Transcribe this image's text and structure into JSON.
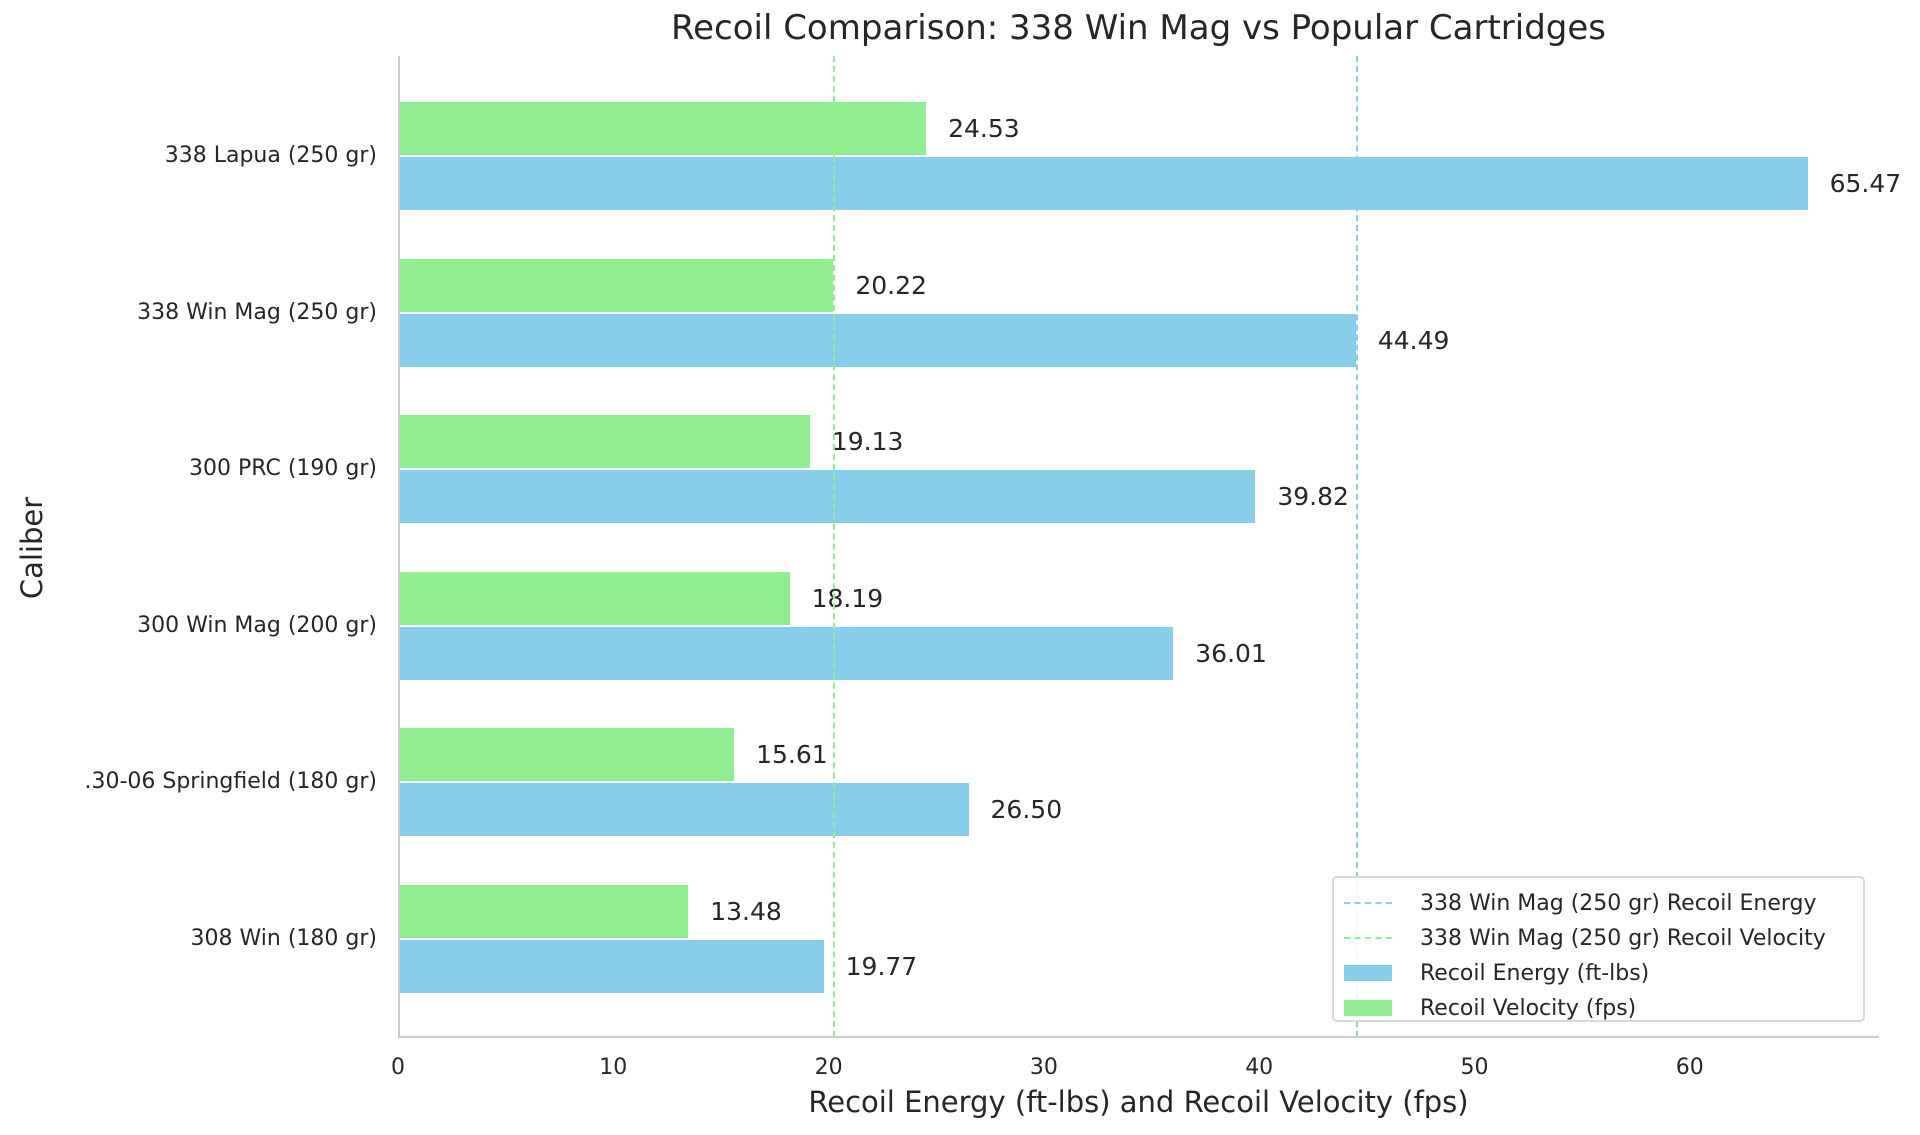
{
  "chart_data": {
    "type": "bar",
    "orientation": "horizontal",
    "title": "Recoil Comparison: 338 Win Mag vs Popular Cartridges",
    "xlabel": "Recoil Energy (ft-lbs) and Recoil Velocity (fps)",
    "ylabel": "Caliber",
    "categories": [
      "338 Lapua (250 gr)",
      "338 Win Mag (250 gr)",
      "300 PRC (190 gr)",
      "300 Win Mag (200 gr)",
      ".30-06 Springfield (180 gr)",
      "308 Win (180 gr)"
    ],
    "series": [
      {
        "name": "Recoil Energy (ft-lbs)",
        "color": "#87ceeb",
        "values": [
          65.47,
          44.49,
          39.82,
          36.01,
          26.5,
          19.77
        ],
        "labels": [
          "65.47",
          "44.49",
          "39.82",
          "36.01",
          "26.50",
          "19.77"
        ]
      },
      {
        "name": "Recoil Velocity (fps)",
        "color": "#90ee90",
        "values": [
          24.53,
          20.22,
          19.13,
          18.19,
          15.61,
          13.48
        ],
        "labels": [
          "24.53",
          "20.22",
          "19.13",
          "18.19",
          "15.61",
          "13.48"
        ]
      }
    ],
    "reference_lines": [
      {
        "name": "338 Win Mag (250 gr) Recoil Energy",
        "x": 44.49,
        "color": "#87ceeb",
        "style": "dashed"
      },
      {
        "name": "338 Win Mag (250 gr) Recoil Velocity",
        "x": 20.22,
        "color": "#90ee90",
        "style": "dashed"
      }
    ],
    "xticks": [
      "0",
      "10",
      "20",
      "30",
      "40",
      "50",
      "60"
    ],
    "xlim": [
      0,
      68.8
    ],
    "grid": false,
    "legend_position": "lower right"
  },
  "legend": {
    "items": [
      {
        "label": "338 Win Mag (250 gr) Recoil Energy",
        "type": "line",
        "color": "#87ceeb"
      },
      {
        "label": "338 Win Mag (250 gr) Recoil Velocity",
        "type": "line",
        "color": "#90ee90"
      },
      {
        "label": "Recoil Energy (ft-lbs)",
        "type": "patch",
        "color": "#87ceeb"
      },
      {
        "label": "Recoil Velocity (fps)",
        "type": "patch",
        "color": "#90ee90"
      }
    ]
  }
}
